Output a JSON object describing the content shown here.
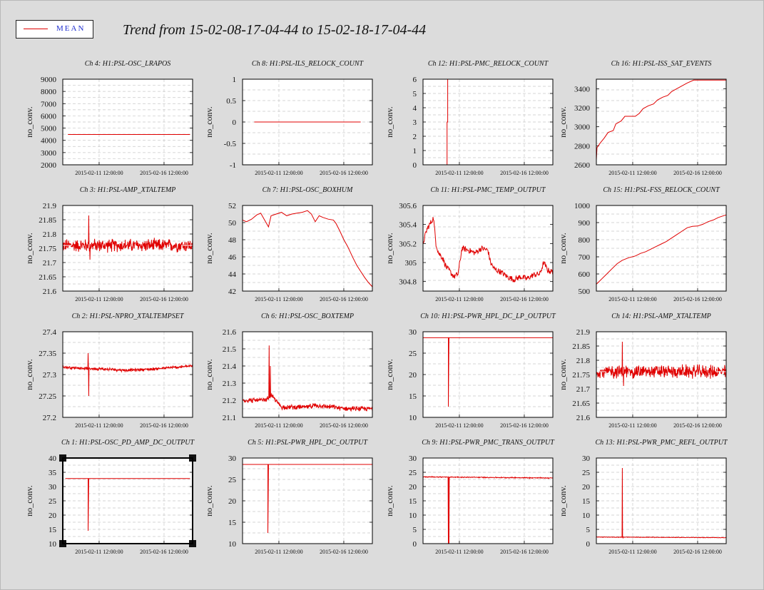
{
  "header": {
    "title": "Trend from 15-02-08-17-04-44 to 15-02-18-17-04-44",
    "legend_label": "MEAN",
    "series_color": "#e00000"
  },
  "chart_data": [
    {
      "id": "ch4",
      "type": "line",
      "title": "Ch 4: H1:PSL-OSC_LRAPOS",
      "ylabel": "no_conv.",
      "xticks": [
        "2015-02-11 12:00:00",
        "2015-02-16 12:00:00"
      ],
      "ylim": [
        2000,
        9000
      ],
      "yticks": [
        "2000",
        "3000",
        "4000",
        "5000",
        "6000",
        "7000",
        "8000",
        "9000"
      ],
      "series": [
        {
          "kind": "flat",
          "value": 4480,
          "start": 0.04,
          "end": 0.98
        }
      ]
    },
    {
      "id": "ch8",
      "type": "line",
      "title": "Ch 8: H1:PSL-ILS_RELOCK_COUNT",
      "ylabel": "no_conv.",
      "xticks": [
        "2015-02-11 12:00:00",
        "2015-02-16 12:00:00"
      ],
      "ylim": [
        -1,
        1
      ],
      "yticks": [
        "-1",
        "-0.5",
        "0",
        "0.5",
        "1"
      ],
      "series": [
        {
          "kind": "flat",
          "value": 0,
          "start": 0.09,
          "end": 0.91
        }
      ]
    },
    {
      "id": "ch12",
      "type": "line",
      "title": "Ch 12: H1:PSL-PMC_RELOCK_COUNT",
      "ylabel": "no_conv.",
      "xticks": [
        "2015-02-11 12:00:00",
        "2015-02-16 12:00:00"
      ],
      "ylim": [
        0,
        6
      ],
      "yticks": [
        "0",
        "1",
        "2",
        "3",
        "4",
        "5",
        "6"
      ],
      "series": [
        {
          "kind": "points",
          "pts": [
            [
              0.185,
              0
            ],
            [
              0.185,
              3
            ],
            [
              0.19,
              3
            ],
            [
              0.19,
              6
            ]
          ]
        }
      ]
    },
    {
      "id": "ch16",
      "type": "line",
      "title": "Ch 16: H1:PSL-ISS_SAT_EVENTS",
      "ylabel": "no_conv.",
      "xticks": [
        "2015-02-11 12:00:00",
        "2015-02-16 12:00:00"
      ],
      "ylim": [
        2600,
        3500
      ],
      "yticks": [
        "2600",
        "2800",
        "3000",
        "3200",
        "3400"
      ],
      "series": [
        {
          "kind": "points",
          "pts": [
            [
              0,
              2650
            ],
            [
              0.005,
              2780
            ],
            [
              0.03,
              2830
            ],
            [
              0.06,
              2880
            ],
            [
              0.09,
              2940
            ],
            [
              0.13,
              2960
            ],
            [
              0.15,
              3030
            ],
            [
              0.19,
              3060
            ],
            [
              0.22,
              3110
            ],
            [
              0.3,
              3110
            ],
            [
              0.33,
              3140
            ],
            [
              0.36,
              3190
            ],
            [
              0.4,
              3220
            ],
            [
              0.44,
              3240
            ],
            [
              0.47,
              3280
            ],
            [
              0.51,
              3310
            ],
            [
              0.55,
              3330
            ],
            [
              0.58,
              3370
            ],
            [
              0.62,
              3400
            ],
            [
              0.66,
              3430
            ],
            [
              0.7,
              3460
            ],
            [
              0.75,
              3490
            ],
            [
              1.0,
              3490
            ]
          ]
        }
      ]
    },
    {
      "id": "ch3",
      "type": "line",
      "title": "Ch 3: H1:PSL-AMP_XTALTEMP",
      "ylabel": "no_conv.",
      "xticks": [
        "2015-02-11 12:00:00",
        "2015-02-16 12:00:00"
      ],
      "ylim": [
        21.6,
        21.9
      ],
      "yticks": [
        "21.6",
        "21.65",
        "21.7",
        "21.75",
        "21.8",
        "21.85",
        "21.9"
      ],
      "series": [
        {
          "kind": "noise",
          "base": 21.76,
          "amp": 0.02,
          "spikes": [
            [
              0.2,
              21.865
            ],
            [
              0.21,
              21.71
            ]
          ],
          "flat": [
            21.76,
            0,
            0.07
          ],
          "flatEnd": [
            21.76,
            0.92,
            1
          ]
        }
      ]
    },
    {
      "id": "ch7",
      "type": "line",
      "title": "Ch 7: H1:PSL-OSC_BOXHUM",
      "ylabel": "no_conv.",
      "xticks": [
        "2015-02-11 12:00:00",
        "2015-02-16 12:00:00"
      ],
      "ylim": [
        42,
        52
      ],
      "yticks": [
        "42",
        "44",
        "46",
        "48",
        "50",
        "52"
      ],
      "series": [
        {
          "kind": "points",
          "pts": [
            [
              0,
              50.3
            ],
            [
              0.03,
              50.1
            ],
            [
              0.07,
              50.4
            ],
            [
              0.11,
              50.9
            ],
            [
              0.14,
              51.1
            ],
            [
              0.17,
              50.3
            ],
            [
              0.2,
              49.5
            ],
            [
              0.22,
              50.8
            ],
            [
              0.26,
              51.0
            ],
            [
              0.3,
              51.2
            ],
            [
              0.34,
              50.8
            ],
            [
              0.38,
              51.0
            ],
            [
              0.42,
              51.1
            ],
            [
              0.46,
              51.2
            ],
            [
              0.5,
              51.4
            ],
            [
              0.53,
              51.0
            ],
            [
              0.56,
              50.1
            ],
            [
              0.59,
              50.8
            ],
            [
              0.62,
              50.6
            ],
            [
              0.66,
              50.4
            ],
            [
              0.7,
              50.3
            ],
            [
              0.72,
              49.9
            ],
            [
              0.75,
              49.0
            ],
            [
              0.78,
              48.0
            ],
            [
              0.81,
              47.2
            ],
            [
              0.85,
              45.9
            ],
            [
              0.88,
              45.0
            ],
            [
              0.91,
              44.3
            ],
            [
              0.94,
              43.6
            ],
            [
              0.97,
              43.0
            ],
            [
              1.0,
              42.5
            ]
          ]
        }
      ]
    },
    {
      "id": "ch11",
      "type": "line",
      "title": "Ch 11: H1:PSL-PMC_TEMP_OUTPUT",
      "ylabel": "no_conv.",
      "xticks": [
        "2015-02-11 12:00:00",
        "2015-02-16 12:00:00"
      ],
      "ylim": [
        304.7,
        305.6
      ],
      "yticks": [
        "304.8",
        "305",
        "305.2",
        "305.4",
        "305.6"
      ],
      "series": [
        {
          "kind": "points",
          "pts": [
            [
              0,
              305.2
            ],
            [
              0.03,
              305.35
            ],
            [
              0.06,
              305.42
            ],
            [
              0.08,
              305.47
            ],
            [
              0.1,
              305.2
            ],
            [
              0.12,
              305.1
            ],
            [
              0.15,
              305.05
            ],
            [
              0.18,
              304.95
            ],
            [
              0.21,
              304.9
            ],
            [
              0.24,
              304.85
            ],
            [
              0.27,
              304.88
            ],
            [
              0.3,
              305.15
            ],
            [
              0.35,
              305.13
            ],
            [
              0.4,
              305.1
            ],
            [
              0.45,
              305.15
            ],
            [
              0.5,
              305.13
            ],
            [
              0.52,
              305.0
            ],
            [
              0.55,
              304.93
            ],
            [
              0.6,
              304.9
            ],
            [
              0.65,
              304.85
            ],
            [
              0.7,
              304.82
            ],
            [
              0.75,
              304.85
            ],
            [
              0.8,
              304.83
            ],
            [
              0.85,
              304.87
            ],
            [
              0.9,
              304.88
            ],
            [
              0.93,
              305.0
            ],
            [
              0.96,
              304.92
            ],
            [
              1.0,
              304.9
            ]
          ],
          "jitter": 0.03
        }
      ]
    },
    {
      "id": "ch15",
      "type": "line",
      "title": "Ch 15: H1:PSL-FSS_RELOCK_COUNT",
      "ylabel": "no_conv.",
      "xticks": [
        "2015-02-11 12:00:00",
        "2015-02-16 12:00:00"
      ],
      "ylim": [
        500,
        1000
      ],
      "yticks": [
        "500",
        "600",
        "700",
        "800",
        "900",
        "1000"
      ],
      "series": [
        {
          "kind": "points",
          "pts": [
            [
              0,
              540
            ],
            [
              0.04,
              570
            ],
            [
              0.08,
              600
            ],
            [
              0.12,
              630
            ],
            [
              0.16,
              660
            ],
            [
              0.2,
              680
            ],
            [
              0.25,
              695
            ],
            [
              0.3,
              705
            ],
            [
              0.34,
              720
            ],
            [
              0.38,
              730
            ],
            [
              0.42,
              745
            ],
            [
              0.46,
              760
            ],
            [
              0.5,
              775
            ],
            [
              0.54,
              790
            ],
            [
              0.58,
              810
            ],
            [
              0.62,
              830
            ],
            [
              0.66,
              850
            ],
            [
              0.7,
              870
            ],
            [
              0.74,
              878
            ],
            [
              0.78,
              880
            ],
            [
              0.82,
              890
            ],
            [
              0.86,
              905
            ],
            [
              0.9,
              915
            ],
            [
              0.94,
              930
            ],
            [
              1.0,
              945
            ]
          ]
        }
      ]
    },
    {
      "id": "ch2",
      "type": "line",
      "title": "Ch 2: H1:PSL-NPRO_XTALTEMPSET",
      "ylabel": "no_conv.",
      "xticks": [
        "2015-02-11 12:00:00",
        "2015-02-16 12:00:00"
      ],
      "ylim": [
        27.2,
        27.4
      ],
      "yticks": [
        "27.2",
        "27.25",
        "27.3",
        "27.35",
        "27.4"
      ],
      "series": [
        {
          "kind": "noise",
          "base": 27.315,
          "amp": 0.003,
          "spikes": [
            [
              0.195,
              27.35
            ],
            [
              0.2,
              27.25
            ]
          ],
          "trend": [
            [
              0,
              27.317
            ],
            [
              0.3,
              27.313
            ],
            [
              0.5,
              27.31
            ],
            [
              0.7,
              27.313
            ],
            [
              1,
              27.32
            ]
          ]
        }
      ]
    },
    {
      "id": "ch6",
      "type": "line",
      "title": "Ch 6: H1:PSL-OSC_BOXTEMP",
      "ylabel": "no_conv.",
      "xticks": [
        "2015-02-11 12:00:00",
        "2015-02-16 12:00:00"
      ],
      "ylim": [
        21.1,
        21.6
      ],
      "yticks": [
        "21.1",
        "21.2",
        "21.3",
        "21.4",
        "21.5",
        "21.6"
      ],
      "series": [
        {
          "kind": "noise",
          "base": 21.19,
          "amp": 0.012,
          "spikes": [
            [
              0.205,
              21.52
            ],
            [
              0.215,
              21.4
            ]
          ],
          "trend": [
            [
              0,
              21.2
            ],
            [
              0.18,
              21.2
            ],
            [
              0.22,
              21.23
            ],
            [
              0.3,
              21.16
            ],
            [
              0.5,
              21.16
            ],
            [
              0.55,
              21.17
            ],
            [
              0.7,
              21.16
            ],
            [
              0.8,
              21.15
            ],
            [
              1,
              21.15
            ]
          ]
        }
      ]
    },
    {
      "id": "ch10",
      "type": "line",
      "title": "Ch 10: H1:PSL-PWR_HPL_DC_LP_OUTPUT",
      "ylabel": "no_conv.",
      "xticks": [
        "2015-02-11 12:00:00",
        "2015-02-16 12:00:00"
      ],
      "ylim": [
        10,
        30
      ],
      "yticks": [
        "10",
        "15",
        "20",
        "25",
        "30"
      ],
      "series": [
        {
          "kind": "points",
          "pts": [
            [
              0,
              28.6
            ],
            [
              0.195,
              28.6
            ],
            [
              0.195,
              12.5
            ],
            [
              0.2,
              28.6
            ],
            [
              1,
              28.6
            ]
          ]
        }
      ]
    },
    {
      "id": "ch14",
      "type": "line",
      "title": "Ch 14: H1:PSL-AMP_XTALTEMP",
      "ylabel": "no_conv.",
      "xticks": [
        "2015-02-11 12:00:00",
        "2015-02-16 12:00:00"
      ],
      "ylim": [
        21.6,
        21.9
      ],
      "yticks": [
        "21.6",
        "21.65",
        "21.7",
        "21.75",
        "21.8",
        "21.85",
        "21.9"
      ],
      "series": [
        {
          "kind": "noise",
          "base": 21.76,
          "amp": 0.02,
          "spikes": [
            [
              0.2,
              21.865
            ],
            [
              0.21,
              21.71
            ]
          ],
          "flat": [
            21.76,
            0,
            0.07
          ],
          "flatEnd": [
            21.76,
            0.92,
            1
          ]
        }
      ]
    },
    {
      "id": "ch1",
      "type": "line",
      "title": "Ch 1: H1:PSL-OSC_PD_AMP_DC_OUTPUT",
      "ylabel": "no_conv.",
      "xticks": [
        "2015-02-11 12:00:00",
        "2015-02-16 12:00:00"
      ],
      "ylim": [
        10,
        40
      ],
      "yticks": [
        "10",
        "15",
        "20",
        "25",
        "30",
        "35",
        "40"
      ],
      "series": [
        {
          "kind": "points",
          "pts": [
            [
              0.02,
              32.8
            ],
            [
              0.195,
              32.8
            ],
            [
              0.195,
              14.5
            ],
            [
              0.2,
              32.8
            ],
            [
              0.98,
              32.8
            ]
          ]
        }
      ],
      "selected": true
    },
    {
      "id": "ch5",
      "type": "line",
      "title": "Ch 5: H1:PSL-PWR_HPL_DC_OUTPUT",
      "ylabel": "no_conv.",
      "xticks": [
        "2015-02-11 12:00:00",
        "2015-02-16 12:00:00"
      ],
      "ylim": [
        10,
        30
      ],
      "yticks": [
        "10",
        "15",
        "20",
        "25",
        "30"
      ],
      "series": [
        {
          "kind": "points",
          "pts": [
            [
              0,
              28.5
            ],
            [
              0.195,
              28.5
            ],
            [
              0.195,
              12.5
            ],
            [
              0.2,
              28.5
            ],
            [
              1,
              28.5
            ]
          ]
        }
      ]
    },
    {
      "id": "ch9",
      "type": "line",
      "title": "Ch 9: H1:PSL-PWR_PMC_TRANS_OUTPUT",
      "ylabel": "no_conv.",
      "xticks": [
        "2015-02-11 12:00:00",
        "2015-02-16 12:00:00"
      ],
      "ylim": [
        0,
        30
      ],
      "yticks": [
        "0",
        "5",
        "10",
        "15",
        "20",
        "25",
        "30"
      ],
      "series": [
        {
          "kind": "noise",
          "base": 23.2,
          "amp": 0.15,
          "spikes": [
            [
              0.195,
              0
            ],
            [
              0.2,
              0
            ]
          ],
          "trend": [
            [
              0,
              23.4
            ],
            [
              0.5,
              23.2
            ],
            [
              1,
              23.0
            ]
          ]
        }
      ]
    },
    {
      "id": "ch13",
      "type": "line",
      "title": "Ch 13: H1:PSL-PWR_PMC_REFL_OUTPUT",
      "ylabel": "no_conv.",
      "xticks": [
        "2015-02-11 12:00:00",
        "2015-02-16 12:00:00"
      ],
      "ylim": [
        0,
        30
      ],
      "yticks": [
        "0",
        "5",
        "10",
        "15",
        "20",
        "25",
        "30"
      ],
      "series": [
        {
          "kind": "noise",
          "base": 2.2,
          "amp": 0.08,
          "spikes": [
            [
              0.2,
              26.5
            ],
            [
              0.205,
              2.0
            ]
          ],
          "trend": [
            [
              0,
              2.3
            ],
            [
              1,
              2.1
            ]
          ]
        }
      ]
    }
  ]
}
